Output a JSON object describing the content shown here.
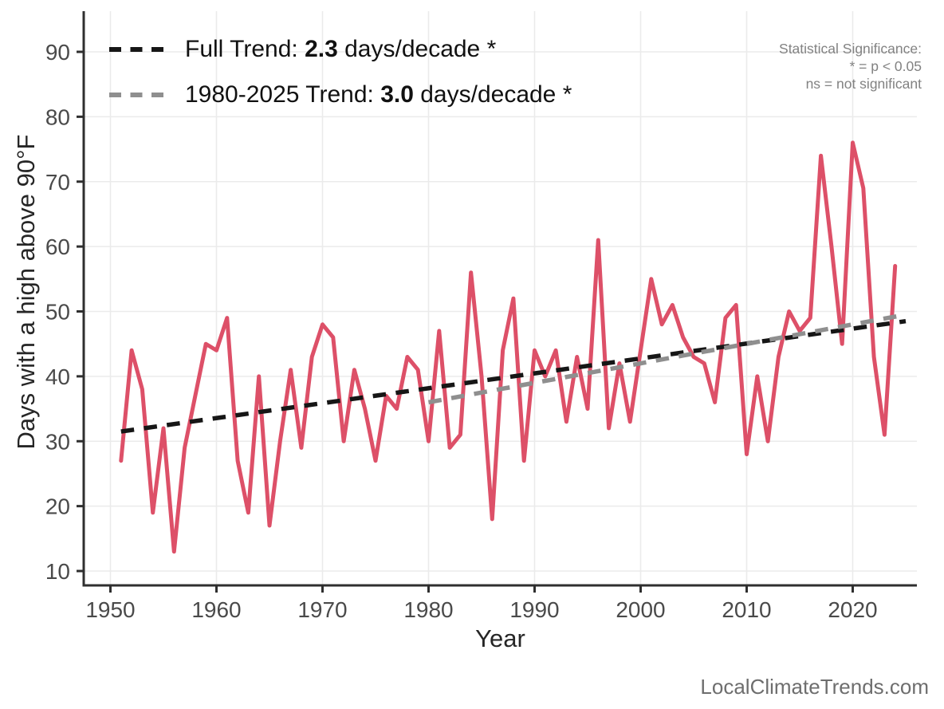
{
  "chart_data": {
    "type": "line",
    "title": "",
    "xlabel": "Year",
    "ylabel": "Days with a high above 90°F",
    "x_ticks": [
      1950,
      1960,
      1970,
      1980,
      1990,
      2000,
      2010,
      2020
    ],
    "y_ticks": [
      10,
      20,
      30,
      40,
      50,
      60,
      70,
      80,
      90
    ],
    "xlim": [
      1947.5,
      2026.5
    ],
    "ylim": [
      7.5,
      96.5
    ],
    "grid": true,
    "legend_position": "top-left-inside",
    "series": [
      {
        "name": "annual-days-above-90F",
        "type": "line",
        "color": "#DD5068",
        "x": [
          1951,
          1952,
          1953,
          1954,
          1955,
          1956,
          1957,
          1958,
          1959,
          1960,
          1961,
          1962,
          1963,
          1964,
          1965,
          1966,
          1967,
          1968,
          1969,
          1970,
          1971,
          1972,
          1973,
          1974,
          1975,
          1976,
          1977,
          1978,
          1979,
          1980,
          1981,
          1982,
          1983,
          1984,
          1985,
          1986,
          1987,
          1988,
          1989,
          1990,
          1991,
          1992,
          1993,
          1994,
          1995,
          1996,
          1997,
          1998,
          1999,
          2000,
          2001,
          2002,
          2003,
          2004,
          2005,
          2006,
          2007,
          2008,
          2009,
          2010,
          2011,
          2012,
          2013,
          2014,
          2015,
          2016,
          2017,
          2018,
          2019,
          2020,
          2021,
          2022,
          2023,
          2024
        ],
        "values": [
          27,
          44,
          38,
          19,
          32,
          13,
          29,
          37,
          45,
          44,
          49,
          27,
          19,
          40,
          17,
          30,
          41,
          29,
          43,
          48,
          46,
          30,
          41,
          35,
          27,
          37,
          35,
          43,
          41,
          30,
          47,
          29,
          31,
          56,
          40,
          18,
          44,
          52,
          27,
          44,
          40,
          44,
          33,
          43,
          35,
          61,
          32,
          42,
          33,
          44,
          55,
          48,
          51,
          46,
          43,
          42,
          36,
          49,
          51,
          28,
          40,
          30,
          43,
          50,
          47,
          49,
          74,
          60,
          45,
          76,
          69,
          43,
          31,
          57
        ]
      },
      {
        "name": "full-trend",
        "type": "dashed-trend",
        "color": "#161616",
        "x": [
          1951,
          2025
        ],
        "values": [
          31.5,
          48.5
        ],
        "rate_days_per_decade": 2.3,
        "significance": "*"
      },
      {
        "name": "trend-1980-2025",
        "type": "dashed-trend",
        "color": "#8F8F8F",
        "x": [
          1980,
          2025
        ],
        "values": [
          36.0,
          49.5
        ],
        "rate_days_per_decade": 3.0,
        "significance": "*"
      }
    ]
  },
  "legend": {
    "items": [
      {
        "prefix": "Full Trend: ",
        "value": "2.3",
        "suffix": " days/decade *",
        "color": "#161616"
      },
      {
        "prefix": "1980-2025 Trend: ",
        "value": "3.0",
        "suffix": " days/decade *",
        "color": "#8F8F8F"
      }
    ]
  },
  "note": {
    "line1": "Statistical Significance:",
    "line2": "* = p < 0.05",
    "line3": "ns = not significant"
  },
  "axis": {
    "x_title": "Year",
    "y_title": "Days with a high above 90°F"
  },
  "watermark": "LocalClimateTrends.com"
}
